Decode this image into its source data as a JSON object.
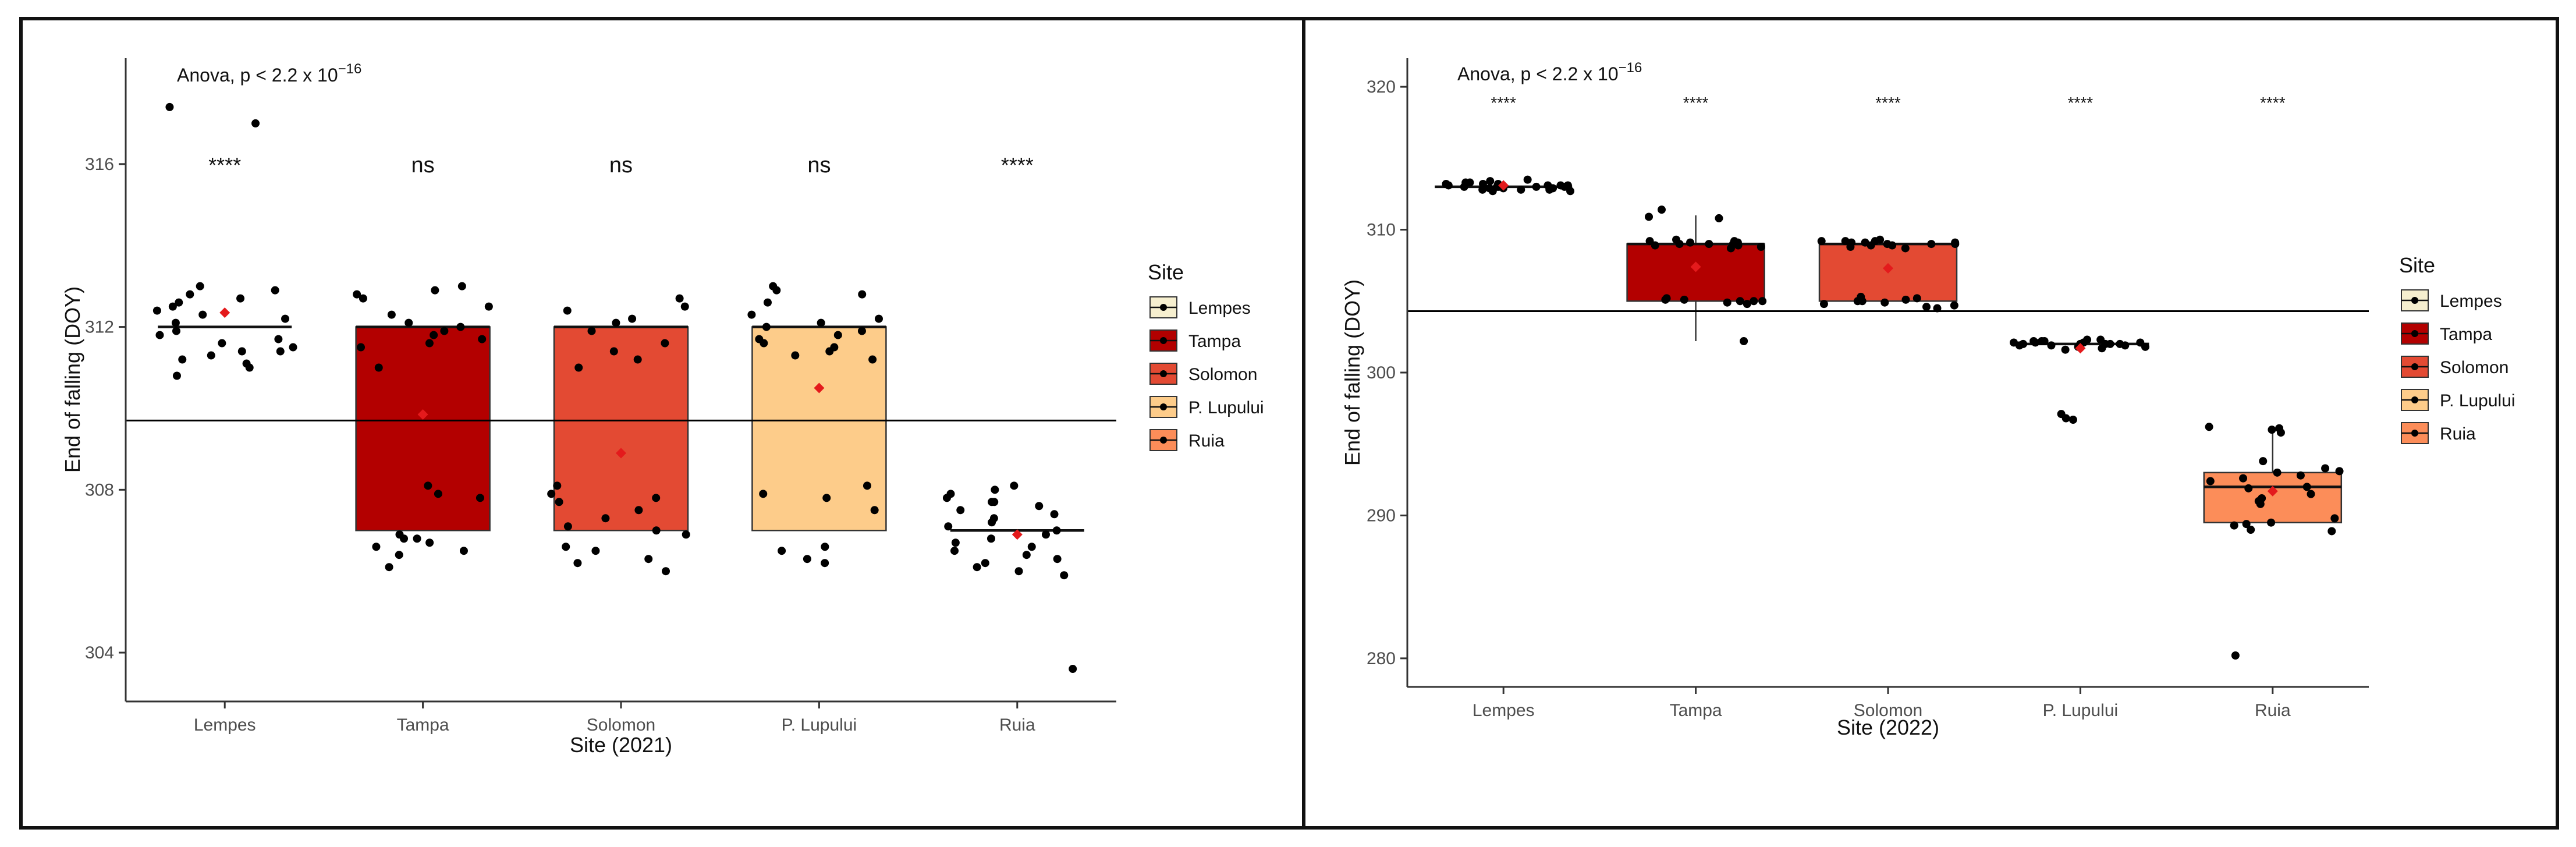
{
  "chart_data": [
    {
      "type": "boxplot",
      "title": "",
      "xlabel": "Site (2021)",
      "ylabel": "End of falling (DOY)",
      "ylim": [
        302.8,
        318.6
      ],
      "yticks": [
        304,
        308,
        312,
        316
      ],
      "categories": [
        "Lempes",
        "Tampa",
        "Solomon",
        "P. Lupului",
        "Ruia"
      ],
      "anova": {
        "text": "Anova, p < 2.2 x 10",
        "exponent": "−16"
      },
      "reference_line": 309.7,
      "significance": [
        "****",
        "ns",
        "ns",
        "ns",
        "****"
      ],
      "boxes": [
        {
          "site": "Lempes",
          "q1": 312,
          "median": 312,
          "q3": 312,
          "mean": 312.35
        },
        {
          "site": "Tampa",
          "q1": 307,
          "median": 312,
          "q3": 312,
          "mean": 309.85
        },
        {
          "site": "Solomon",
          "q1": 307,
          "median": 312,
          "q3": 312,
          "mean": 308.9
        },
        {
          "site": "P. Lupului",
          "q1": 307,
          "median": 312,
          "q3": 312,
          "mean": 310.5
        },
        {
          "site": "Ruia",
          "q1": 307,
          "median": 307,
          "q3": 307,
          "mean": 306.9
        }
      ],
      "points": [
        [
          311.4,
          311.6,
          311.2,
          311.8,
          311.0,
          312.7,
          312.5,
          311.3,
          312.9,
          313.0,
          312.2,
          311.5,
          311.7,
          312.4,
          312.6,
          311.1,
          310.8,
          311.9,
          312.3,
          312.1,
          312.8,
          311.4,
          317.4,
          317.0
        ],
        [
          306.8,
          306.5,
          306.1,
          306.9,
          307.8,
          307.9,
          308.1,
          311.8,
          312.0,
          312.5,
          312.9,
          313.0,
          311.5,
          311.9,
          312.3,
          311.0,
          306.7,
          306.4,
          306.6,
          312.7,
          311.7,
          312.1,
          306.8,
          311.6,
          312.8
        ],
        [
          306.3,
          306.0,
          306.2,
          306.9,
          307.1,
          307.5,
          307.9,
          308.1,
          311.9,
          312.2,
          312.5,
          312.7,
          311.2,
          311.4,
          306.6,
          307.7,
          307.3,
          307.0,
          307.8,
          312.1,
          311.6,
          306.5,
          311.0,
          312.4
        ],
        [
          306.2,
          306.6,
          307.8,
          308.1,
          312.0,
          312.3,
          312.6,
          312.9,
          313.0,
          311.5,
          311.8,
          311.9,
          312.2,
          306.3,
          307.5,
          311.4,
          312.8,
          311.6,
          311.2,
          307.9,
          306.5,
          311.3,
          311.7,
          312.1
        ],
        [
          306.0,
          306.2,
          306.5,
          306.8,
          307.1,
          307.4,
          307.7,
          308.0,
          307.9,
          306.6,
          306.3,
          306.9,
          307.6,
          307.2,
          307.0,
          305.9,
          306.4,
          307.8,
          307.5,
          303.6,
          306.7,
          307.3,
          308.1,
          306.1,
          307.7
        ]
      ]
    },
    {
      "type": "boxplot",
      "title": "",
      "xlabel": "Site (2022)",
      "ylabel": "End of falling (DOY)",
      "ylim": [
        278,
        322
      ],
      "yticks": [
        280,
        290,
        300,
        310,
        320
      ],
      "categories": [
        "Lempes",
        "Tampa",
        "Solomon",
        "P. Lupului",
        "Ruia"
      ],
      "anova": {
        "text": "Anova, p < 2.2 x 10",
        "exponent": "−16"
      },
      "reference_line": 304.3,
      "significance": [
        "****",
        "****",
        "****",
        "****",
        "****"
      ],
      "boxes": [
        {
          "site": "Lempes",
          "q1": 313,
          "median": 313,
          "q3": 313,
          "lower_whisker": 313,
          "upper_whisker": 313,
          "mean": 313.1
        },
        {
          "site": "Tampa",
          "q1": 305,
          "median": 309,
          "q3": 309,
          "lower_whisker": 302.2,
          "upper_whisker": 311.0,
          "mean": 307.4
        },
        {
          "site": "Solomon",
          "q1": 305,
          "median": 309,
          "q3": 309,
          "lower_whisker": 305,
          "upper_whisker": 309,
          "mean": 307.3
        },
        {
          "site": "P. Lupului",
          "q1": 302,
          "median": 302,
          "q3": 302,
          "lower_whisker": 302,
          "upper_whisker": 302,
          "mean": 301.7
        },
        {
          "site": "Ruia",
          "q1": 289.5,
          "median": 292,
          "q3": 293,
          "lower_whisker": 289.5,
          "upper_whisker": 296,
          "mean": 291.7
        }
      ],
      "points": [
        [
          313.0,
          312.8,
          313.2,
          313.1,
          312.9,
          313.3,
          313.0,
          312.7,
          313.4,
          313.1,
          312.8,
          313.2,
          313.0,
          312.9,
          313.3,
          313.1,
          312.7,
          313.0,
          313.2,
          312.8,
          313.5,
          313.1,
          312.9,
          313.0
        ],
        [
          305.0,
          305.2,
          304.9,
          305.1,
          309.0,
          309.2,
          308.8,
          309.1,
          308.9,
          309.3,
          309.0,
          311.4,
          310.8,
          310.9,
          302.2,
          305.0,
          304.8,
          309.1,
          308.7,
          309.0,
          305.1,
          308.9,
          309.2,
          305.0
        ],
        [
          305.0,
          305.2,
          304.8,
          305.1,
          304.6,
          304.9,
          309.0,
          309.1,
          308.9,
          309.2,
          309.3,
          309.0,
          308.8,
          309.1,
          309.2,
          308.7,
          304.7,
          305.3,
          304.5,
          309.0,
          309.1,
          305.0,
          308.9,
          309.2
        ],
        [
          302.0,
          302.1,
          301.9,
          302.2,
          302.0,
          301.8,
          302.1,
          302.3,
          301.9,
          302.0,
          302.2,
          301.7,
          302.1,
          296.7,
          297.1,
          296.8,
          302.0,
          301.9,
          302.2,
          302.1,
          301.8,
          302.0,
          302.3,
          301.6
        ],
        [
          289.0,
          289.3,
          289.5,
          290.8,
          291.2,
          291.5,
          292.0,
          292.8,
          293.1,
          293.3,
          296.0,
          296.2,
          296.1,
          295.8,
          293.8,
          293.0,
          292.6,
          291.0,
          289.8,
          288.9,
          280.2,
          292.4,
          291.9,
          289.4
        ]
      ]
    }
  ],
  "legend": {
    "title": "Site",
    "items": [
      {
        "label": "Lempes",
        "color": "#f6efcf"
      },
      {
        "label": "Tampa",
        "color": "#b30000"
      },
      {
        "label": "Solomon",
        "color": "#e34a33"
      },
      {
        "label": "P. Lupului",
        "color": "#fdcc8a"
      },
      {
        "label": "Ruia",
        "color": "#fc8d59"
      }
    ]
  },
  "colors": {
    "point": "#000000",
    "mean_point": "#e41a1c",
    "reference_line": "#000000"
  }
}
